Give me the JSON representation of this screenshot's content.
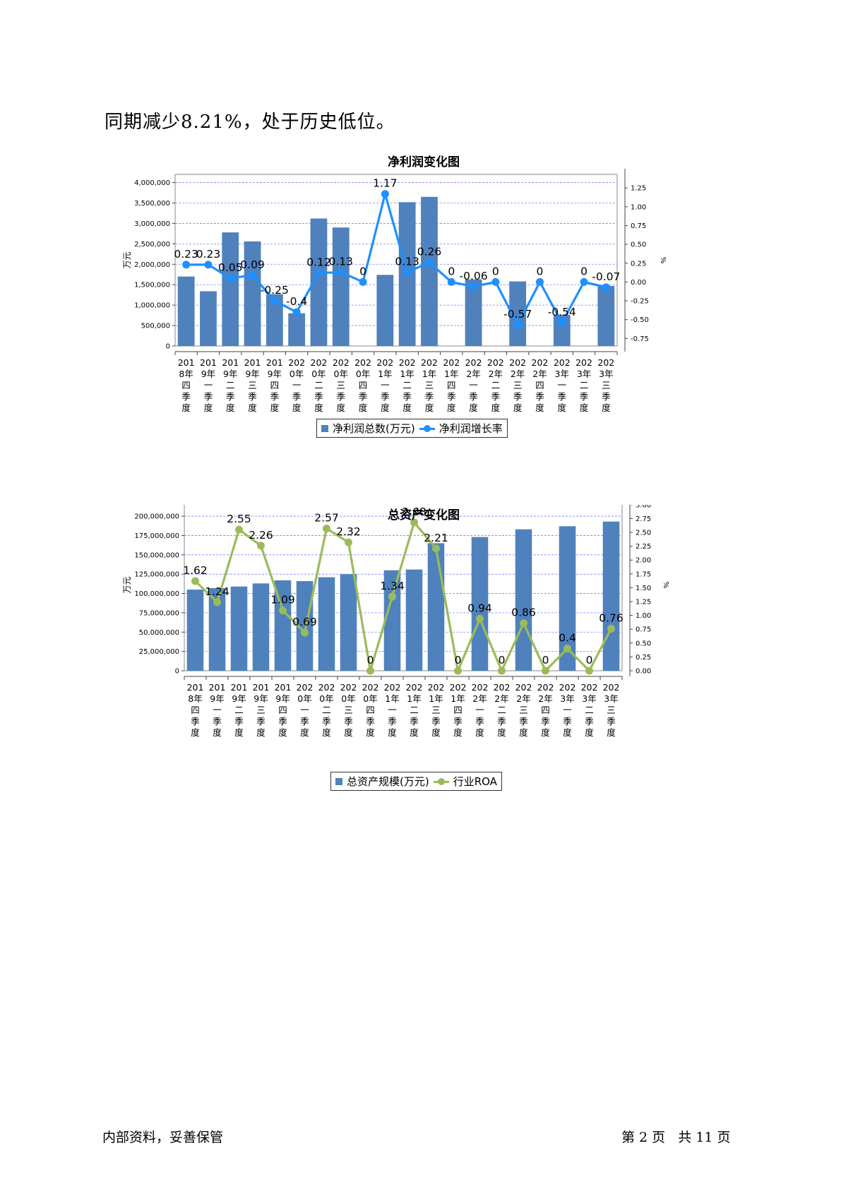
{
  "intro_text": "同期减少8.21%，处于历史低位。",
  "footer": {
    "left": "内部资料，妥善保管",
    "right": "第 2 页   共 11 页"
  },
  "colors": {
    "bar": "#4f81bd",
    "line1": "#1e90ff",
    "line2": "#9bbb59",
    "grid": "#8080ff"
  },
  "chart_data": [
    {
      "type": "bar",
      "title": "净利润变化图",
      "ylabel": "万元",
      "y2label": "%",
      "ylim": [
        0,
        4200000
      ],
      "y2lim": [
        -0.85,
        1.43
      ],
      "yticks": [
        0,
        500000,
        1000000,
        1500000,
        2000000,
        2500000,
        3000000,
        3500000,
        4000000
      ],
      "ytick_labels": [
        "0",
        "500,000",
        "1,000,000",
        "1,500,000",
        "2,000,000",
        "2,500,000",
        "3,000,000",
        "3,500,000",
        "4,000,000"
      ],
      "y2ticks": [
        -0.75,
        -0.5,
        -0.25,
        0,
        0.25,
        0.5,
        0.75,
        1,
        1.25
      ],
      "y2tick_labels": [
        "-0.75",
        "-0.50",
        "-0.25",
        "0.00",
        "0.25",
        "0.50",
        "0.75",
        "1.00",
        "1.25"
      ],
      "categories": [
        [
          "201",
          "8年",
          "四",
          "季",
          "度"
        ],
        [
          "201",
          "9年",
          "一",
          "季",
          "度"
        ],
        [
          "201",
          "9年",
          "二",
          "季",
          "度"
        ],
        [
          "201",
          "9年",
          "三",
          "季",
          "度"
        ],
        [
          "201",
          "9年",
          "四",
          "季",
          "度"
        ],
        [
          "202",
          "0年",
          "一",
          "季",
          "度"
        ],
        [
          "202",
          "0年",
          "二",
          "季",
          "度"
        ],
        [
          "202",
          "0年",
          "三",
          "季",
          "度"
        ],
        [
          "202",
          "0年",
          "四",
          "季",
          "度"
        ],
        [
          "202",
          "1年",
          "一",
          "季",
          "度"
        ],
        [
          "202",
          "1年",
          "二",
          "季",
          "度"
        ],
        [
          "202",
          "1年",
          "三",
          "季",
          "度"
        ],
        [
          "202",
          "1年",
          "四",
          "季",
          "度"
        ],
        [
          "202",
          "2年",
          "一",
          "季",
          "度"
        ],
        [
          "202",
          "2年",
          "二",
          "季",
          "度"
        ],
        [
          "202",
          "2年",
          "三",
          "季",
          "度"
        ],
        [
          "202",
          "2年",
          "四",
          "季",
          "度"
        ],
        [
          "202",
          "3年",
          "一",
          "季",
          "度"
        ],
        [
          "202",
          "3年",
          "二",
          "季",
          "度"
        ],
        [
          "202",
          "3年",
          "三",
          "季",
          "度"
        ]
      ],
      "series": [
        {
          "name": "净利润总数(万元)",
          "kind": "bar",
          "values": [
            1700000,
            1340000,
            2780000,
            2560000,
            1270000,
            800000,
            3120000,
            2900000,
            0,
            1740000,
            3520000,
            3650000,
            0,
            1630000,
            0,
            1580000,
            0,
            760000,
            0,
            1470000
          ]
        },
        {
          "name": "净利润增长率",
          "kind": "line",
          "values": [
            0.23,
            0.23,
            0.05,
            0.09,
            -0.25,
            -0.4,
            0.12,
            0.13,
            0,
            1.17,
            0.13,
            0.26,
            0,
            -0.06,
            0,
            -0.57,
            0,
            -0.54,
            0,
            -0.07
          ],
          "labels": [
            "0.23",
            "0.23",
            "0.05",
            "0.09",
            "-0.25",
            "-0.4",
            "0.12",
            "0.13",
            "0",
            "1.17",
            "0.13",
            "0.26",
            "0",
            "-0.06",
            "0",
            "-0.57",
            "0",
            "-0.54",
            "0",
            "-0.07"
          ]
        }
      ],
      "legend_position": "bottom"
    },
    {
      "type": "bar",
      "title": "总资产变化图",
      "ylabel": "万元",
      "y2label": "%",
      "ylim": [
        0,
        222000000
      ],
      "y2lim": [
        0,
        3.1
      ],
      "yticks": [
        0,
        25000000,
        50000000,
        75000000,
        100000000,
        125000000,
        150000000,
        175000000,
        200000000
      ],
      "ytick_labels": [
        "0",
        "25,000,000",
        "50,000,000",
        "75,000,000",
        "100,000,000",
        "125,000,000",
        "150,000,000",
        "175,000,000",
        "200,000,000"
      ],
      "y2ticks": [
        0,
        0.25,
        0.5,
        0.75,
        1,
        1.25,
        1.5,
        1.75,
        2,
        2.25,
        2.5,
        2.75,
        3
      ],
      "y2tick_labels": [
        "0.00",
        "0.25",
        "0.50",
        "0.75",
        "1.00",
        "1.25",
        "1.50",
        "1.75",
        "2.00",
        "2.25",
        "2.50",
        "2.75",
        "3.00"
      ],
      "categories": [
        [
          "201",
          "8年",
          "四",
          "季",
          "度"
        ],
        [
          "201",
          "9年",
          "一",
          "季",
          "度"
        ],
        [
          "201",
          "9年",
          "二",
          "季",
          "度"
        ],
        [
          "201",
          "9年",
          "三",
          "季",
          "度"
        ],
        [
          "201",
          "9年",
          "四",
          "季",
          "度"
        ],
        [
          "202",
          "0年",
          "一",
          "季",
          "度"
        ],
        [
          "202",
          "0年",
          "二",
          "季",
          "度"
        ],
        [
          "202",
          "0年",
          "三",
          "季",
          "度"
        ],
        [
          "202",
          "0年",
          "四",
          "季",
          "度"
        ],
        [
          "202",
          "1年",
          "一",
          "季",
          "度"
        ],
        [
          "202",
          "1年",
          "二",
          "季",
          "度"
        ],
        [
          "202",
          "1年",
          "三",
          "季",
          "度"
        ],
        [
          "202",
          "1年",
          "四",
          "季",
          "度"
        ],
        [
          "202",
          "2年",
          "一",
          "季",
          "度"
        ],
        [
          "202",
          "2年",
          "二",
          "季",
          "度"
        ],
        [
          "202",
          "2年",
          "三",
          "季",
          "度"
        ],
        [
          "202",
          "2年",
          "四",
          "季",
          "度"
        ],
        [
          "202",
          "3年",
          "一",
          "季",
          "度"
        ],
        [
          "202",
          "3年",
          "二",
          "季",
          "度"
        ],
        [
          "202",
          "3年",
          "三",
          "季",
          "度"
        ]
      ],
      "series": [
        {
          "name": "总资产规模(万元)",
          "kind": "bar",
          "values": [
            105000000,
            107000000,
            109000000,
            113000000,
            117000000,
            116000000,
            121000000,
            125000000,
            0,
            130000000,
            131000000,
            165000000,
            0,
            173000000,
            0,
            183000000,
            0,
            187000000,
            0,
            193000000
          ]
        },
        {
          "name": "行业ROA",
          "kind": "line",
          "values": [
            1.62,
            1.24,
            2.55,
            2.26,
            1.09,
            0.69,
            2.57,
            2.32,
            0,
            1.34,
            2.68,
            2.21,
            0,
            0.94,
            0,
            0.86,
            0,
            0.4,
            0,
            0.76
          ],
          "labels": [
            "1.62",
            "1.24",
            "2.55",
            "2.26",
            "1.09",
            "0.69",
            "2.57",
            "2.32",
            "0",
            "1.34",
            "2.68",
            "2.21",
            "0",
            "0.94",
            "0",
            "0.86",
            "0",
            "0.4",
            "0",
            "0.76"
          ]
        }
      ],
      "legend_position": "bottom"
    }
  ]
}
